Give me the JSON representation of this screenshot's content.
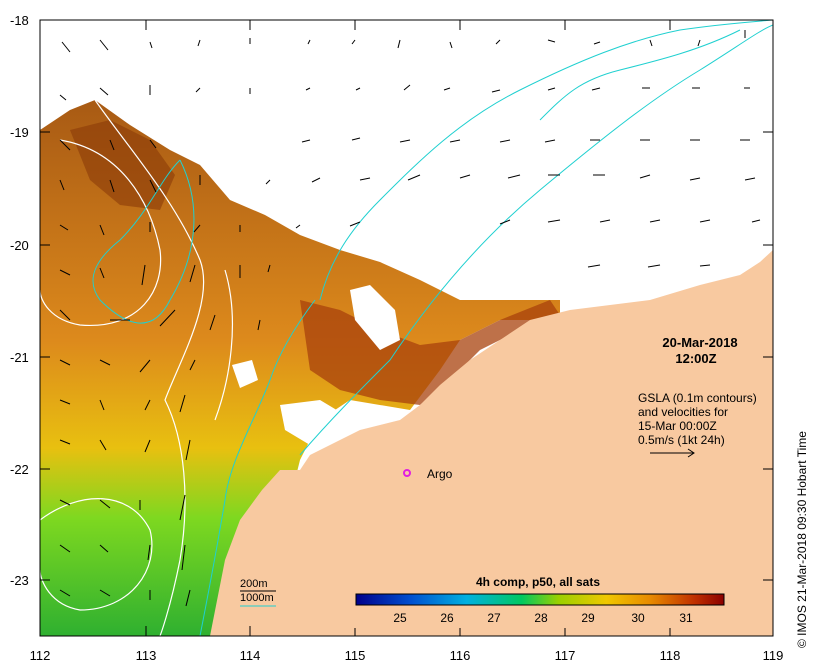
{
  "map": {
    "lon_ticks": [
      "112",
      "113",
      "114",
      "115",
      "116",
      "117",
      "118",
      "119"
    ],
    "lat_ticks": [
      "-18",
      "-19",
      "-20",
      "-21",
      "-22",
      "-23"
    ],
    "date": "20-Mar-2018",
    "time": "12:00Z",
    "gsla_lines": [
      "GSLA (0.1m contours)",
      "and velocities for",
      "15-Mar 00:00Z",
      "0.5m/s (1kt 24h)"
    ],
    "argo_label": "Argo",
    "legend_200m": "200m",
    "legend_1000m": "1000m",
    "colorbar_title": "4h comp, p50, all sats",
    "colorbar_ticks": [
      "25",
      "26",
      "27",
      "28",
      "29",
      "30",
      "31"
    ],
    "credit": "© IMOS 21-Mar-2018 09:30 Hobart Time",
    "colors": {
      "land": "#f8c9a0",
      "argo": "#e020e0",
      "isobath": "#00d0d0",
      "gsla_contour": "#ffffff"
    }
  }
}
